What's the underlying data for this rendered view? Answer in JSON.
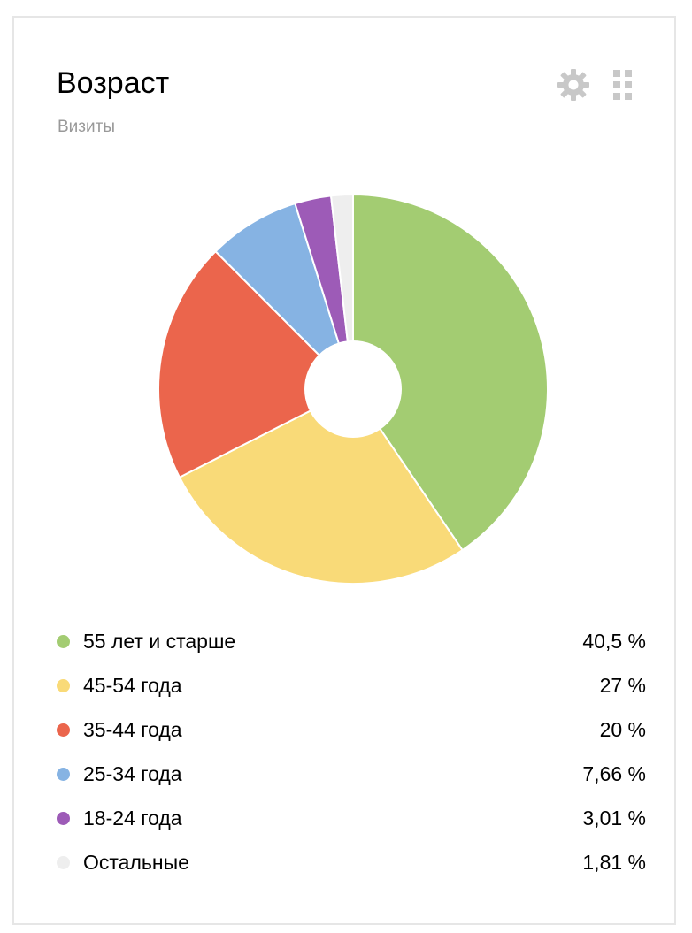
{
  "card": {
    "title": "Возраст",
    "subtitle": "Визиты"
  },
  "toolbar": {
    "settings_icon": "gear-icon",
    "drag_icon": "grid-dots-icon"
  },
  "chart_data": {
    "type": "pie",
    "title": "Возраст",
    "subtitle": "Визиты",
    "legend_position": "bottom",
    "slices": [
      {
        "label": "55 лет и старше",
        "value": 40.5,
        "display": "40,5 %",
        "color": "#a3cc72"
      },
      {
        "label": "45-54 года",
        "value": 27,
        "display": "27 %",
        "color": "#f9da78"
      },
      {
        "label": "35-44 года",
        "value": 20,
        "display": "20 %",
        "color": "#eb654c"
      },
      {
        "label": "25-34 года",
        "value": 7.66,
        "display": "7,66 %",
        "color": "#86b3e3"
      },
      {
        "label": "18-24 года",
        "value": 3.01,
        "display": "3,01 %",
        "color": "#9d5bb7"
      },
      {
        "label": "Остальные",
        "value": 1.81,
        "display": "1,81 %",
        "color": "#eeeeee"
      }
    ]
  }
}
